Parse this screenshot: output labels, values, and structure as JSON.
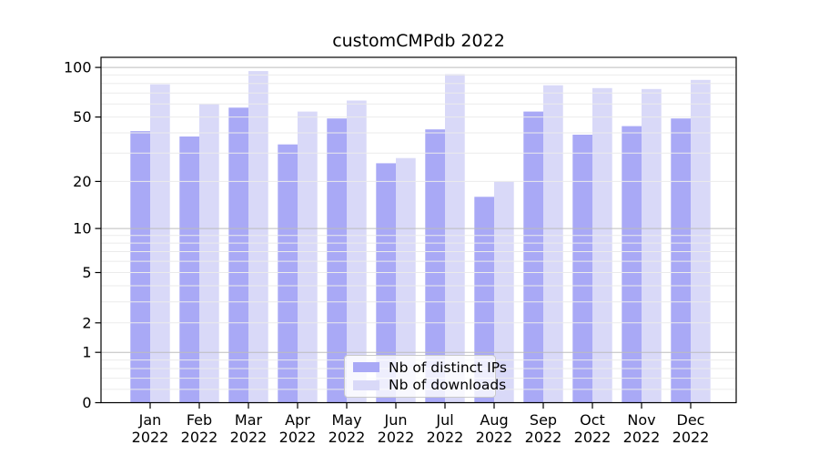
{
  "chart_data": {
    "type": "bar",
    "title": "customCMPdb 2022",
    "categories": [
      "Jan",
      "Feb",
      "Mar",
      "Apr",
      "May",
      "Jun",
      "Jul",
      "Aug",
      "Sep",
      "Oct",
      "Nov",
      "Dec"
    ],
    "xtick_year": "2022",
    "series": [
      {
        "name": "Nb of distinct IPs",
        "color": "#a9a9f6",
        "values": [
          41,
          38,
          57,
          34,
          49,
          26,
          42,
          16,
          54,
          39,
          44,
          49
        ]
      },
      {
        "name": "Nb of downloads",
        "color": "#d9d9f8",
        "values": [
          79,
          60,
          95,
          54,
          63,
          28,
          91,
          20,
          78,
          75,
          74,
          84
        ]
      }
    ],
    "yscale": "log1p",
    "ylim": [
      0,
      115
    ],
    "ytick_labels": [
      100,
      50,
      20,
      10,
      5,
      2,
      1,
      0
    ],
    "grid": {
      "on": true,
      "major": [
        1,
        10,
        100
      ],
      "minor": [
        0.2,
        0.4,
        0.6,
        0.8,
        2,
        3,
        4,
        5,
        6,
        7,
        8,
        9,
        20,
        30,
        40,
        50,
        60,
        70,
        80,
        90
      ],
      "major_color": "#bdbdbd",
      "minor_color": "#ebebeb",
      "drawn_over_bars": true
    },
    "legend_position": "lower center",
    "frame_color": "#000000",
    "text_color": "#000000"
  }
}
